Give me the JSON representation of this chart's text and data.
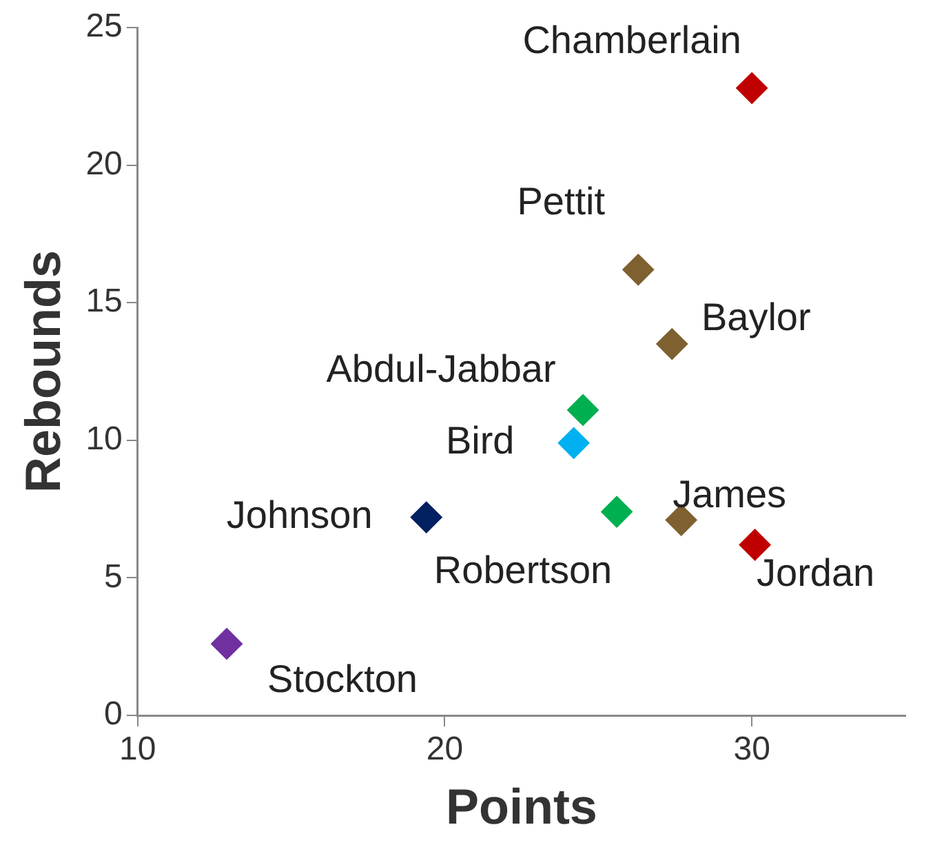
{
  "chart_data": {
    "type": "scatter",
    "xlabel": "Points",
    "ylabel": "Rebounds",
    "xlim": [
      10,
      35
    ],
    "xticks": [
      10,
      20,
      30
    ],
    "ylim": [
      0,
      25
    ],
    "yticks": [
      0,
      5,
      10,
      15,
      20,
      25
    ],
    "grid": false,
    "legend": false,
    "marker": "diamond",
    "series": [
      {
        "name": "Chamberlain",
        "color": "#c00000",
        "x": [
          30.0
        ],
        "values": [
          22.8
        ]
      },
      {
        "name": "Pettit",
        "color": "#7f6030",
        "x": [
          26.3
        ],
        "values": [
          16.2
        ]
      },
      {
        "name": "Baylor",
        "color": "#7f6030",
        "x": [
          27.4
        ],
        "values": [
          13.5
        ]
      },
      {
        "name": "Abdul-Jabbar",
        "color": "#00b050",
        "x": [
          24.5
        ],
        "values": [
          11.1
        ]
      },
      {
        "name": "Bird",
        "color": "#00b0f0",
        "x": [
          24.2
        ],
        "values": [
          9.9
        ]
      },
      {
        "name": "Johnson",
        "color": "#002060",
        "x": [
          19.4
        ],
        "values": [
          7.2
        ]
      },
      {
        "name": "Robertson",
        "color": "#00b050",
        "x": [
          25.6
        ],
        "values": [
          7.4
        ]
      },
      {
        "name": "James",
        "color": "#7f6030",
        "x": [
          27.7
        ],
        "values": [
          7.1
        ]
      },
      {
        "name": "Jordan",
        "color": "#c00000",
        "x": [
          30.1
        ],
        "values": [
          6.2
        ]
      },
      {
        "name": "Stockton",
        "color": "#7030a0",
        "x": [
          12.9
        ],
        "values": [
          2.6
        ]
      }
    ]
  }
}
